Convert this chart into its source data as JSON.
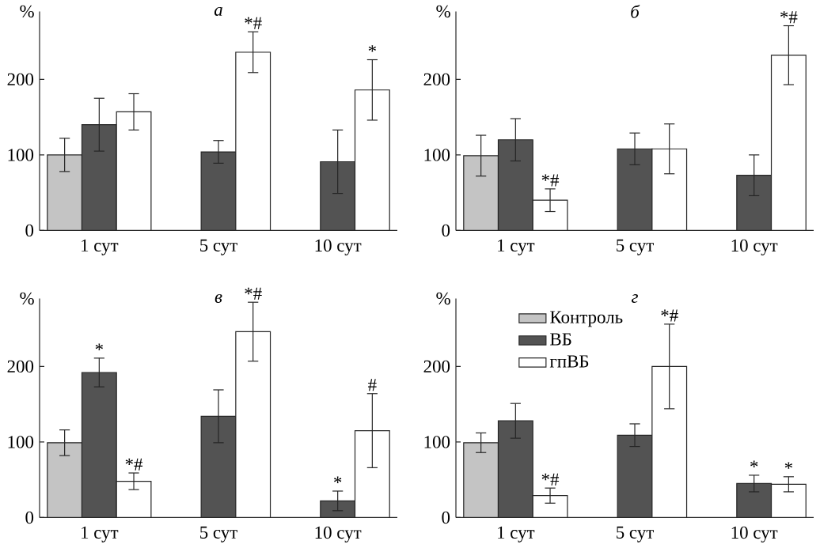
{
  "chart_data": [
    {
      "type": "bar",
      "title": "а",
      "ylabel": "%",
      "categories": [
        "1 сут",
        "5 сут",
        "10 сут"
      ],
      "ylim": [
        0,
        290
      ],
      "yticks": [
        0,
        100,
        200
      ],
      "series": [
        {
          "color": "#c4c4c4",
          "values": [
            100,
            null,
            null
          ],
          "errors": [
            22,
            null,
            null
          ]
        },
        {
          "color": "#535353",
          "values": [
            140,
            104,
            91
          ],
          "errors": [
            35,
            15,
            42
          ]
        },
        {
          "color": "#ffffff",
          "values": [
            157,
            236,
            186
          ],
          "errors": [
            24,
            27,
            40
          ],
          "value_labels": [
            null,
            "*#",
            "*"
          ]
        }
      ]
    },
    {
      "type": "bar",
      "title": "б",
      "ylabel": "%",
      "categories": [
        "1 сут",
        "5 сут",
        "10 сут"
      ],
      "ylim": [
        0,
        290
      ],
      "yticks": [
        0,
        100,
        200
      ],
      "series": [
        {
          "color": "#c4c4c4",
          "values": [
            99,
            null,
            null
          ],
          "errors": [
            27,
            null,
            null
          ]
        },
        {
          "color": "#535353",
          "values": [
            120,
            108,
            73
          ],
          "errors": [
            28,
            21,
            27
          ]
        },
        {
          "color": "#ffffff",
          "values": [
            40,
            108,
            232
          ],
          "errors": [
            15,
            33,
            39
          ],
          "value_labels": [
            "*#",
            null,
            "*#"
          ]
        }
      ]
    },
    {
      "type": "bar",
      "title": "в",
      "ylabel": "%",
      "categories": [
        "1 сут",
        "5 сут",
        "10 сут"
      ],
      "ylim": [
        0,
        290
      ],
      "yticks": [
        0,
        100,
        200
      ],
      "series": [
        {
          "color": "#c4c4c4",
          "values": [
            99,
            null,
            null
          ],
          "errors": [
            17,
            null,
            null
          ]
        },
        {
          "color": "#535353",
          "values": [
            192,
            134,
            22
          ],
          "errors": [
            19,
            35,
            13
          ],
          "value_labels": [
            "*",
            null,
            "*"
          ]
        },
        {
          "color": "#ffffff",
          "values": [
            48,
            246,
            115
          ],
          "errors": [
            11,
            39,
            49
          ],
          "value_labels": [
            "*#",
            "*#",
            "#"
          ]
        }
      ]
    },
    {
      "type": "bar",
      "title": "г",
      "ylabel": "%",
      "categories": [
        "1 сут",
        "5 сут",
        "10 сут"
      ],
      "ylim": [
        0,
        290
      ],
      "yticks": [
        0,
        100,
        200
      ],
      "legend": "top left",
      "series": [
        {
          "name": "Контроль",
          "color": "#c4c4c4",
          "values": [
            99,
            null,
            null
          ],
          "errors": [
            13,
            null,
            null
          ]
        },
        {
          "name": "ВБ",
          "color": "#535353",
          "values": [
            128,
            109,
            45
          ],
          "errors": [
            23,
            15,
            11
          ],
          "value_labels": [
            null,
            null,
            "*"
          ]
        },
        {
          "name": "гпВБ",
          "color": "#ffffff",
          "values": [
            29,
            200,
            44
          ],
          "errors": [
            10,
            56,
            10
          ],
          "value_labels": [
            "*#",
            "*#",
            "*"
          ]
        }
      ]
    }
  ]
}
